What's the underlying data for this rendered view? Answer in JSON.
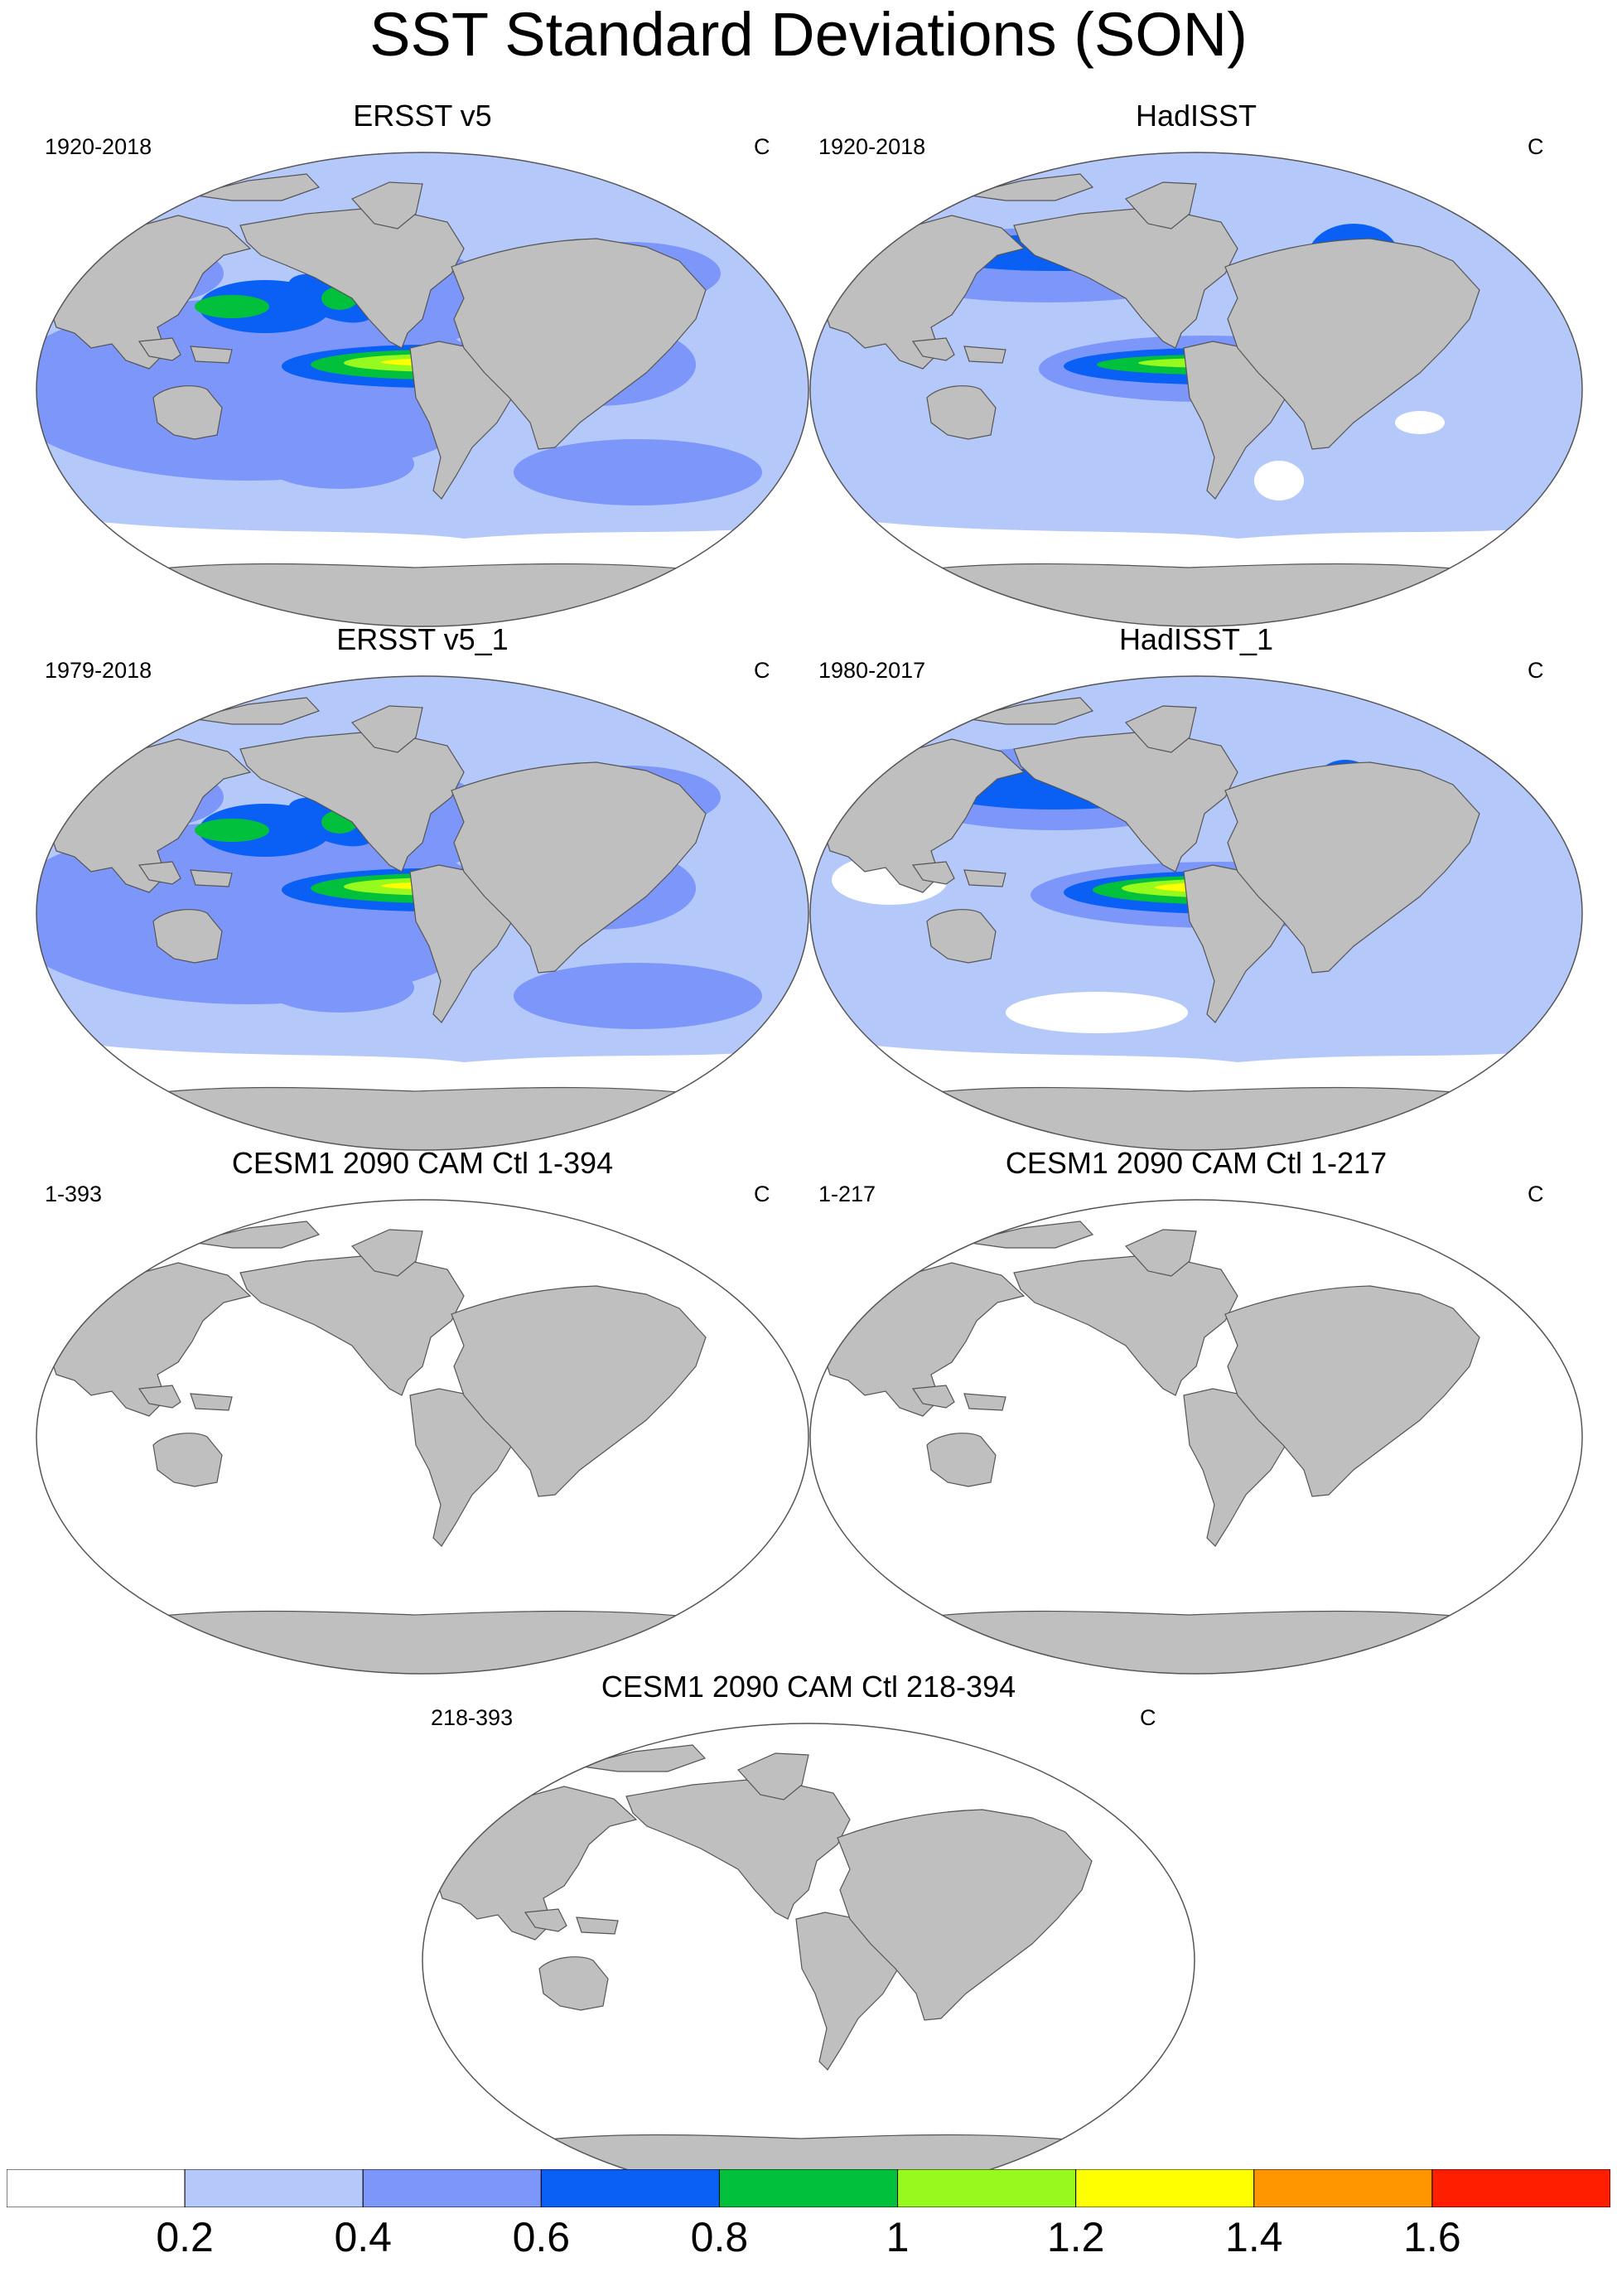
{
  "title": "SST Standard Deviations (SON)",
  "land_color": "#bfbfbf",
  "panels": [
    {
      "title": "ERSST v5",
      "years": "1920-2018",
      "units": "C",
      "pattern": "obs-strong"
    },
    {
      "title": "HadISST",
      "years": "1920-2018",
      "units": "C",
      "pattern": "obs-medium"
    },
    {
      "title": "ERSST v5_1",
      "years": "1979-2018",
      "units": "C",
      "pattern": "obs-strong"
    },
    {
      "title": "HadISST_1",
      "years": "1980-2017",
      "units": "C",
      "pattern": "obs-peak"
    },
    {
      "title": "CESM1 2090 CAM Ctl 1-394",
      "years": "1-393",
      "units": "C",
      "pattern": "blank"
    },
    {
      "title": "CESM1 2090 CAM Ctl 1-217",
      "years": "1-217",
      "units": "C",
      "pattern": "blank"
    },
    {
      "title": "CESM1 2090 CAM Ctl 218-394",
      "years": "218-393",
      "units": "C",
      "pattern": "blank"
    }
  ],
  "colorbar": {
    "colors": [
      "#ffffff",
      "#b4c8fa",
      "#7c96fa",
      "#0a5ff5",
      "#00c03c",
      "#96fa1e",
      "#ffff00",
      "#ff9600",
      "#ff1e00"
    ],
    "labels": [
      "0.2",
      "0.4",
      "0.6",
      "0.8",
      "1",
      "1.2",
      "1.4",
      "1.6"
    ]
  }
}
